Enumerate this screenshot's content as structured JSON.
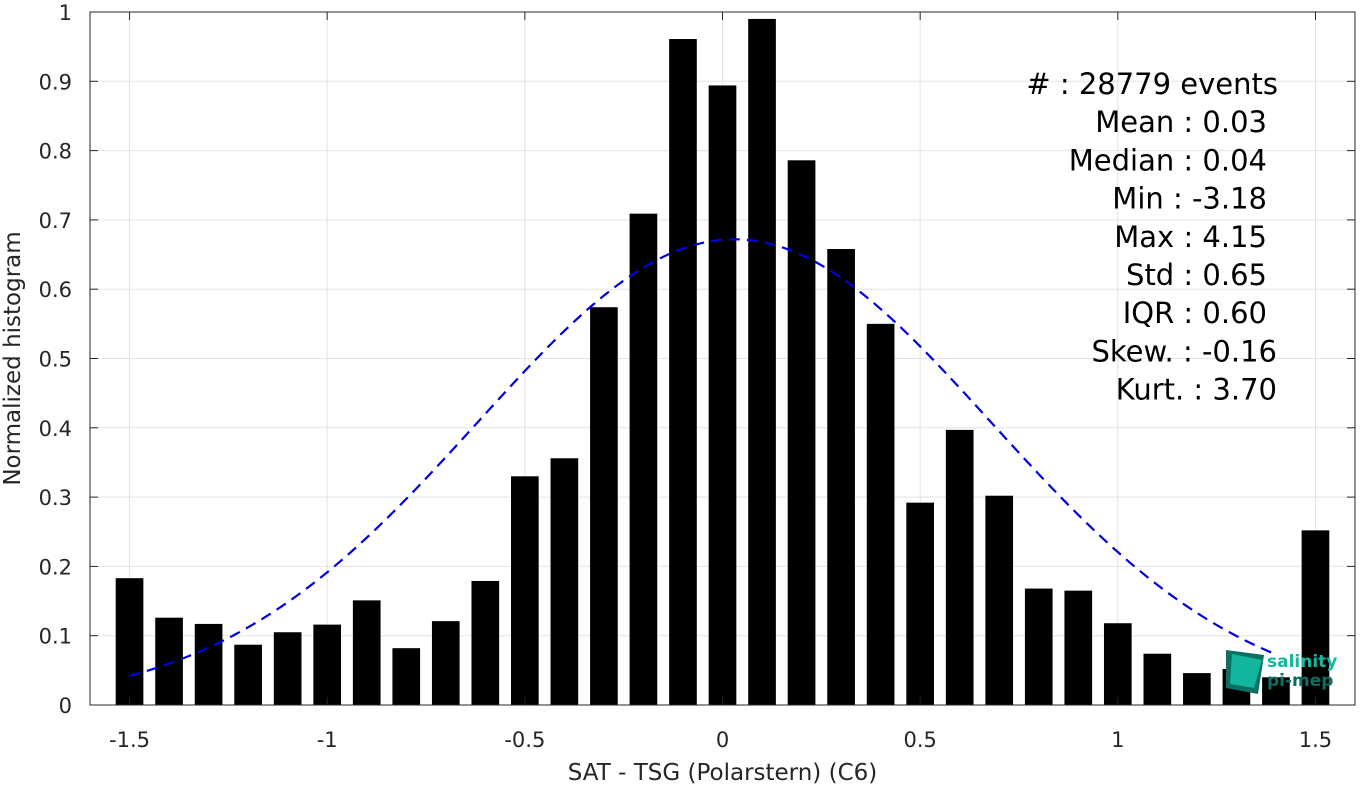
{
  "chart_data": {
    "type": "bar",
    "xlabel": "SAT - TSG (Polarstern) (C6)",
    "ylabel": "Normalized histogram",
    "xlim": [
      -1.6,
      1.6
    ],
    "ylim": [
      0,
      1
    ],
    "grid": true,
    "x_ticks": [
      -1.5,
      -1,
      -0.5,
      0,
      0.5,
      1,
      1.5
    ],
    "x_tick_labels": [
      "-1.5",
      "-1",
      "-0.5",
      "0",
      "0.5",
      "1",
      "1.5"
    ],
    "y_ticks": [
      0,
      0.1,
      0.2,
      0.3,
      0.4,
      0.5,
      0.6,
      0.7,
      0.8,
      0.9,
      1
    ],
    "y_tick_labels": [
      "0",
      "0.1",
      "0.2",
      "0.3",
      "0.4",
      "0.5",
      "0.6",
      "0.7",
      "0.8",
      "0.9",
      "1"
    ],
    "bar_width": 0.07,
    "bar_color": "#000000",
    "x": [
      -1.5,
      -1.4,
      -1.3,
      -1.2,
      -1.1,
      -1.0,
      -0.9,
      -0.8,
      -0.7,
      -0.6,
      -0.5,
      -0.4,
      -0.3,
      -0.2,
      -0.1,
      0.0,
      0.1,
      0.2,
      0.3,
      0.4,
      0.5,
      0.6,
      0.7,
      0.8,
      0.9,
      1.0,
      1.1,
      1.2,
      1.3,
      1.4,
      1.5
    ],
    "values": [
      0.183,
      0.126,
      0.117,
      0.087,
      0.105,
      0.116,
      0.151,
      0.082,
      0.121,
      0.179,
      0.33,
      0.356,
      0.574,
      0.709,
      0.961,
      0.894,
      0.99,
      0.786,
      0.658,
      0.55,
      0.292,
      0.397,
      0.302,
      0.168,
      0.165,
      0.118,
      0.074,
      0.046,
      0.052,
      0.04,
      0.252
    ],
    "fit": {
      "style": "dashed",
      "color": "#0000e0",
      "mean": 0.03,
      "std": 0.65,
      "peak": 0.672,
      "x_range": [
        -1.5,
        1.4
      ]
    },
    "stats": [
      "#  : 28779 events",
      "Mean : 0.03",
      "Median : 0.04",
      "Min : -3.18",
      "Max : 4.15",
      "Std : 0.65",
      "IQR : 0.60",
      "Skew. : -0.16",
      "Kurt. : 3.70"
    ]
  },
  "logo": {
    "line1": "salinity",
    "line2": "pi-mep",
    "colors": [
      "#0aa79a",
      "#0d6e62",
      "#14c2a8"
    ]
  }
}
